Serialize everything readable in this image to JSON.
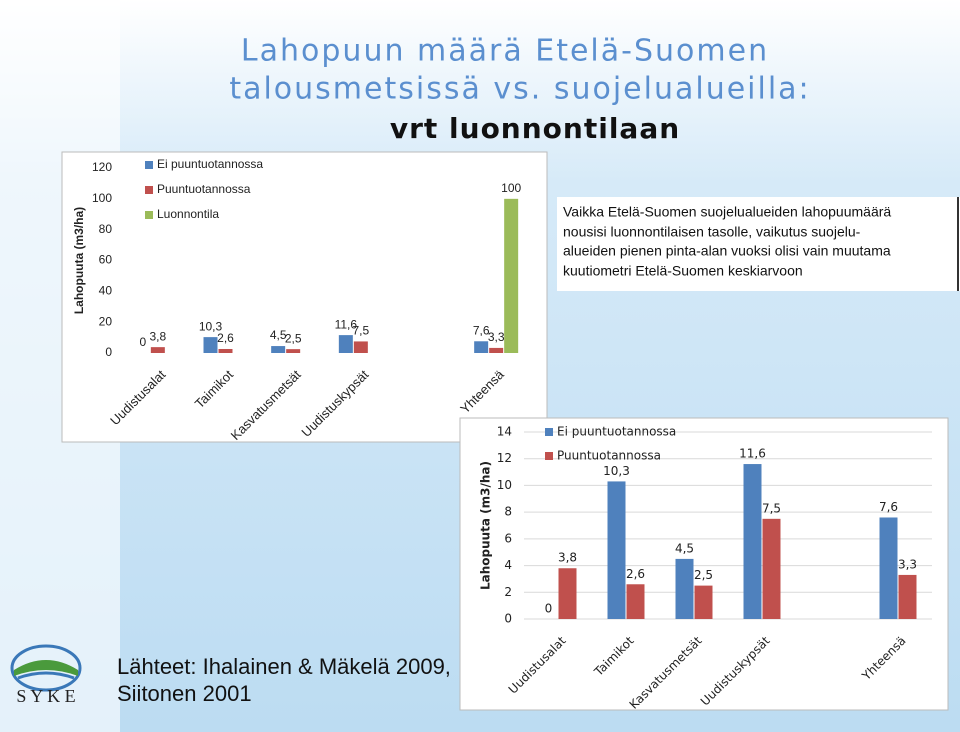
{
  "slide": {
    "title_lines": [
      "Lahopuun määrä Etelä-Suomen",
      "talousmetsissä vs. suojelualueilla:"
    ],
    "subtitle": "vrt luonnontilaan",
    "note_lines": [
      "Vaikka Etelä-Suomen suojelualueiden lahopuumäärä",
      "nousisi luonnontilaisen tasolle, vaikutus suojelu-",
      "alueiden pienen pinta-alan vuoksi olisi vain muutama",
      "kuutiometri Etelä-Suomen keskiarvoon"
    ],
    "source_lines": [
      "Lähteet: Ihalainen & Mäkelä 2009,",
      "Siitonen 2001"
    ],
    "logo": "S Y K E"
  },
  "chart_data": [
    {
      "type": "bar",
      "y_label": "Lahopuuta (m3/ha)",
      "categories": [
        "Uudistusalat",
        "Taimikot",
        "Kasvatusmetsät",
        "Uudistuskypsät",
        null,
        "Yhteensä"
      ],
      "series": [
        {
          "name": "Ei puuntuotannossa",
          "color": "#4f81bd",
          "values": [
            0,
            10.3,
            4.5,
            11.6,
            null,
            7.6
          ],
          "value_labels": [
            "0",
            "10,3",
            "4,5",
            "11,6",
            null,
            "7,6"
          ]
        },
        {
          "name": "Puuntuotannossa",
          "color": "#c0504d",
          "values": [
            3.8,
            2.6,
            2.5,
            7.5,
            null,
            3.3
          ],
          "value_labels": [
            "3,8",
            "2,6",
            "2,5",
            "7,5",
            null,
            "3,3"
          ]
        },
        {
          "name": "Luonnontila",
          "color": "#9bbb59",
          "values": [
            null,
            null,
            null,
            null,
            null,
            100
          ],
          "value_labels": [
            null,
            null,
            null,
            null,
            null,
            "100"
          ]
        }
      ],
      "ylim": [
        0,
        120
      ],
      "yticks": [
        0,
        20,
        40,
        60,
        80,
        100,
        120
      ],
      "grid": false,
      "legend": "top-left"
    },
    {
      "type": "bar",
      "y_label": "Lahopuuta (m3/ha)",
      "categories": [
        "Uudistusalat",
        "Taimikot",
        "Kasvatusmetsät",
        "Uudistuskypsät",
        null,
        "Yhteensä"
      ],
      "series": [
        {
          "name": "Ei puuntuotannossa",
          "color": "#4f81bd",
          "values": [
            0,
            10.3,
            4.5,
            11.6,
            null,
            7.6
          ],
          "value_labels": [
            "0",
            "10,3",
            "4,5",
            "11,6",
            null,
            "7,6"
          ]
        },
        {
          "name": "Puuntuotannossa",
          "color": "#c0504d",
          "values": [
            3.8,
            2.6,
            2.5,
            7.5,
            null,
            3.3
          ],
          "value_labels": [
            "3,8",
            "2,6",
            "2,5",
            "7,5",
            null,
            "3,3"
          ]
        }
      ],
      "ylim": [
        0,
        14
      ],
      "yticks": [
        0,
        2,
        4,
        6,
        8,
        10,
        12,
        14
      ],
      "grid": true,
      "legend": "top-left"
    }
  ]
}
